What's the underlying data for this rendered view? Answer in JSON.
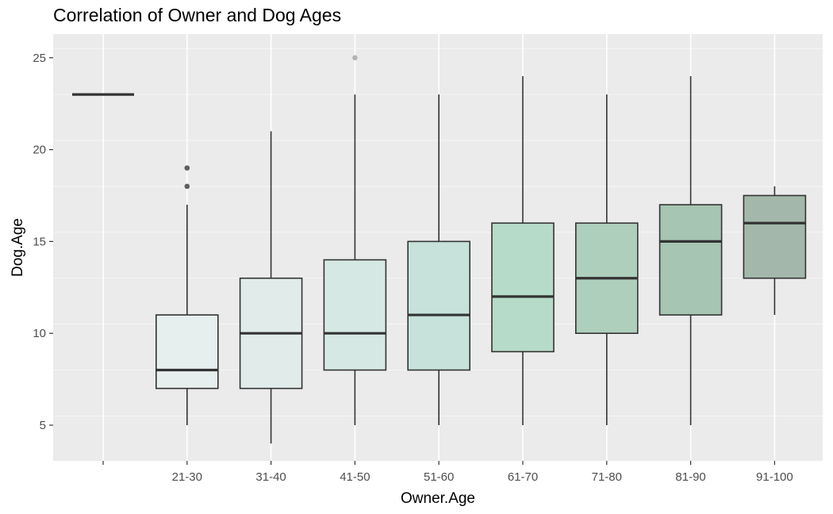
{
  "chart_data": {
    "type": "boxplot",
    "title": "Correlation of Owner and Dog Ages",
    "xlabel": "Owner.Age",
    "ylabel": "Dog.Age",
    "categories": [
      "",
      "21-30",
      "31-40",
      "41-50",
      "51-60",
      "61-70",
      "71-80",
      "81-90",
      "91-100"
    ],
    "ylim": [
      3,
      26
    ],
    "yticks": [
      5,
      10,
      15,
      20,
      25
    ],
    "grid": true,
    "boxes": [
      {
        "category": "",
        "whisker_low": 23,
        "q1": 23,
        "median": 23,
        "q3": 23,
        "whisker_high": 23,
        "outliers": [],
        "fill": "#ffffff"
      },
      {
        "category": "21-30",
        "whisker_low": 5,
        "q1": 7,
        "median": 8,
        "q3": 11,
        "whisker_high": 17,
        "outliers": [
          18,
          19
        ],
        "fill": "#e6efed"
      },
      {
        "category": "31-40",
        "whisker_low": 4,
        "q1": 7,
        "median": 10,
        "q3": 13,
        "whisker_high": 21,
        "outliers": [],
        "fill": "#e1ecea"
      },
      {
        "category": "41-50",
        "whisker_low": 5,
        "q1": 8,
        "median": 10,
        "q3": 14,
        "whisker_high": 23,
        "outliers": [
          25
        ],
        "fill": "#d6e8e3"
      },
      {
        "category": "51-60",
        "whisker_low": 5,
        "q1": 8,
        "median": 11,
        "q3": 15,
        "whisker_high": 23,
        "outliers": [],
        "fill": "#c6e2da"
      },
      {
        "category": "61-70",
        "whisker_low": 5,
        "q1": 9,
        "median": 12,
        "q3": 16,
        "whisker_high": 24,
        "outliers": [],
        "fill": "#b6dbc8"
      },
      {
        "category": "71-80",
        "whisker_low": 5,
        "q1": 10,
        "median": 13,
        "q3": 16,
        "whisker_high": 23,
        "outliers": [],
        "fill": "#aecfbc"
      },
      {
        "category": "81-90",
        "whisker_low": 5,
        "q1": 11,
        "median": 15,
        "q3": 17,
        "whisker_high": 24,
        "outliers": [],
        "fill": "#a6c5b2"
      },
      {
        "category": "91-100",
        "whisker_low": 11,
        "q1": 13,
        "median": 16,
        "q3": 17.5,
        "whisker_high": 18,
        "outliers": [],
        "fill": "#a3b8aa"
      }
    ],
    "colors": {
      "panel_background": "#ebebeb",
      "grid_major": "#ffffff",
      "box_stroke": "#333333",
      "outlier_dark": "#444444",
      "outlier_light": "#b3b3b3"
    }
  }
}
